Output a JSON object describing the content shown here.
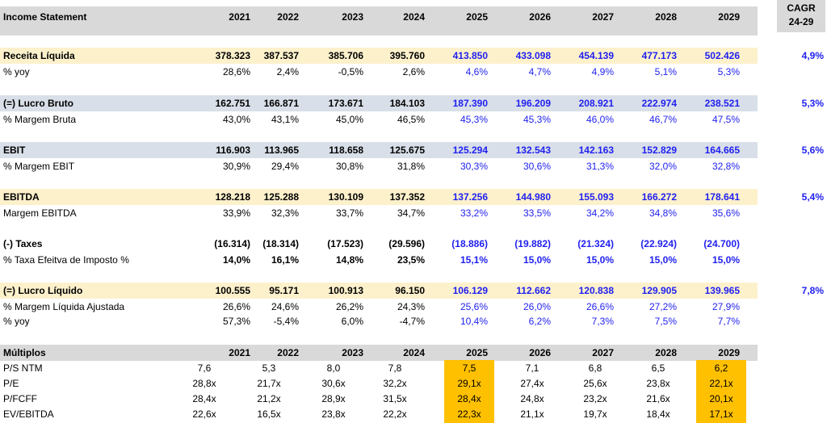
{
  "header": {
    "title": "Income Statement",
    "years": [
      "2021",
      "2022",
      "2023",
      "2024",
      "2025",
      "2026",
      "2027",
      "2028",
      "2029"
    ],
    "cagr_label_line1": "CAGR",
    "cagr_label_line2": "24-29"
  },
  "rows": [
    {
      "label": "Receita Líquida",
      "values": [
        "378.323",
        "387.537",
        "385.706",
        "395.760",
        "413.850",
        "433.098",
        "454.139",
        "477.173",
        "502.426"
      ],
      "cagr": "4,9%"
    },
    {
      "label": "% yoy",
      "values": [
        "28,6%",
        "2,4%",
        "-0,5%",
        "2,6%",
        "4,6%",
        "4,7%",
        "4,9%",
        "5,1%",
        "5,3%"
      ],
      "cagr": ""
    },
    {
      "label": "(=) Lucro Bruto",
      "values": [
        "162.751",
        "166.871",
        "173.671",
        "184.103",
        "187.390",
        "196.209",
        "208.921",
        "222.974",
        "238.521"
      ],
      "cagr": "5,3%"
    },
    {
      "label": "% Margem Bruta",
      "values": [
        "43,0%",
        "43,1%",
        "45,0%",
        "46,5%",
        "45,3%",
        "45,3%",
        "46,0%",
        "46,7%",
        "47,5%"
      ],
      "cagr": ""
    },
    {
      "label": "EBIT",
      "values": [
        "116.903",
        "113.965",
        "118.658",
        "125.675",
        "125.294",
        "132.543",
        "142.163",
        "152.829",
        "164.665"
      ],
      "cagr": "5,6%"
    },
    {
      "label": "% Margem EBIT",
      "values": [
        "30,9%",
        "29,4%",
        "30,8%",
        "31,8%",
        "30,3%",
        "30,6%",
        "31,3%",
        "32,0%",
        "32,8%"
      ],
      "cagr": ""
    },
    {
      "label": "EBITDA",
      "values": [
        "128.218",
        "125.288",
        "130.109",
        "137.352",
        "137.256",
        "144.980",
        "155.093",
        "166.272",
        "178.641"
      ],
      "cagr": "5,4%"
    },
    {
      "label": "Margem EBITDA",
      "values": [
        "33,9%",
        "32,3%",
        "33,7%",
        "34,7%",
        "33,2%",
        "33,5%",
        "34,2%",
        "34,8%",
        "35,6%"
      ],
      "cagr": ""
    },
    {
      "label": "(-) Taxes",
      "values": [
        "(16.314)",
        "(18.314)",
        "(17.523)",
        "(29.596)",
        "(18.886)",
        "(19.882)",
        "(21.324)",
        "(22.924)",
        "(24.700)"
      ],
      "cagr": ""
    },
    {
      "label": "% Taxa Efeitva de Imposto %",
      "values": [
        "14,0%",
        "16,1%",
        "14,8%",
        "23,5%",
        "15,1%",
        "15,0%",
        "15,0%",
        "15,0%",
        "15,0%"
      ],
      "cagr": ""
    },
    {
      "label": "(=) Lucro Líquido",
      "values": [
        "100.555",
        "95.171",
        "100.913",
        "96.150",
        "106.129",
        "112.662",
        "120.838",
        "129.905",
        "139.965"
      ],
      "cagr": "7,8%"
    },
    {
      "label": "% Margem Líquida Ajustada",
      "values": [
        "26,6%",
        "24,6%",
        "26,2%",
        "24,3%",
        "25,6%",
        "26,0%",
        "26,6%",
        "27,2%",
        "27,9%"
      ],
      "cagr": ""
    },
    {
      "label": "% yoy",
      "values": [
        "57,3%",
        "-5,4%",
        "6,0%",
        "-4,7%",
        "10,4%",
        "6,2%",
        "7,3%",
        "7,5%",
        "7,7%"
      ],
      "cagr": ""
    }
  ],
  "multiples": {
    "title": "Múltiplos",
    "years": [
      "2021",
      "2022",
      "2023",
      "2024",
      "2025",
      "2026",
      "2027",
      "2028",
      "2029"
    ],
    "highlight_color": "#ffc000",
    "rows": [
      {
        "label": "P/S NTM",
        "values": [
          "7,6",
          "5,3",
          "8,0",
          "7,8",
          "7,5",
          "7,1",
          "6,8",
          "6,5",
          "6,2"
        ]
      },
      {
        "label": "P/E",
        "values": [
          "28,8x",
          "21,7x",
          "30,6x",
          "32,2x",
          "29,1x",
          "27,4x",
          "25,6x",
          "23,8x",
          "22,1x"
        ]
      },
      {
        "label": "P/FCFF",
        "values": [
          "28,4x",
          "21,2x",
          "28,9x",
          "31,5x",
          "28,4x",
          "24,8x",
          "23,2x",
          "21,6x",
          "20,1x"
        ]
      },
      {
        "label": "EV/EBITDA",
        "values": [
          "22,6x",
          "16,5x",
          "23,8x",
          "22,2x",
          "22,3x",
          "21,1x",
          "19,7x",
          "18,4x",
          "17,1x"
        ]
      }
    ]
  },
  "colors": {
    "projection_text": "#1f1ff0",
    "band_yellow": "#fdf1cc",
    "band_blue": "#d9dfe8",
    "band_gray": "#d9d9d9"
  }
}
